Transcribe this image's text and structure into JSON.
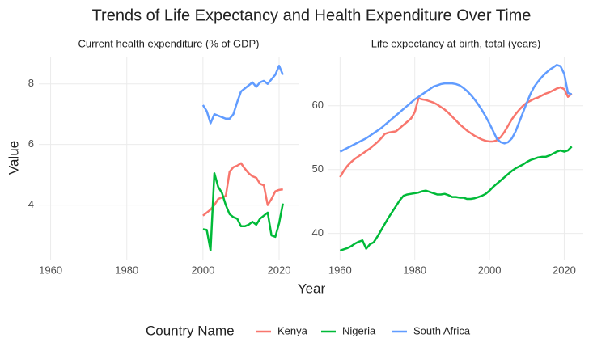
{
  "title": "Trends of Life Expectancy and Health Expenditure Over Time",
  "x_label": "Year",
  "y_label": "Value",
  "legend_title": "Country Name",
  "chart_data": [
    {
      "type": "line",
      "title": "Current health expenditure (% of GDP)",
      "x": [
        2000,
        2001,
        2002,
        2003,
        2004,
        2005,
        2006,
        2007,
        2008,
        2009,
        2010,
        2011,
        2012,
        2013,
        2014,
        2015,
        2016,
        2017,
        2018,
        2019,
        2020,
        2021
      ],
      "series": [
        {
          "name": "Kenya",
          "color": "#F8766D",
          "values": [
            3.65,
            3.75,
            3.85,
            4.0,
            4.2,
            4.25,
            4.3,
            5.1,
            5.25,
            5.3,
            5.38,
            5.2,
            5.05,
            4.95,
            4.9,
            4.7,
            4.65,
            4.0,
            4.2,
            4.45,
            4.5,
            4.52
          ]
        },
        {
          "name": "Nigeria",
          "color": "#00BA38",
          "values": [
            3.2,
            3.18,
            2.5,
            5.05,
            4.6,
            4.4,
            4.0,
            3.7,
            3.6,
            3.55,
            3.3,
            3.3,
            3.35,
            3.45,
            3.35,
            3.55,
            3.65,
            3.75,
            3.0,
            2.95,
            3.4,
            4.05
          ]
        },
        {
          "name": "South Africa",
          "color": "#619CFF",
          "values": [
            7.3,
            7.1,
            6.7,
            7.0,
            6.95,
            6.9,
            6.85,
            6.85,
            7.0,
            7.4,
            7.75,
            7.85,
            7.95,
            8.05,
            7.9,
            8.05,
            8.1,
            8.0,
            8.15,
            8.3,
            8.6,
            8.3
          ]
        }
      ],
      "xlim": [
        1956.9,
        2025.1
      ],
      "xticks": [
        1960,
        1980,
        2000,
        2020
      ],
      "ylim": [
        2.2,
        8.9
      ],
      "yticks": [
        4,
        6,
        8
      ],
      "grid": true
    },
    {
      "type": "line",
      "title": "Life expectancy at birth, total (years)",
      "x": [
        1960,
        1961,
        1962,
        1963,
        1964,
        1965,
        1966,
        1967,
        1968,
        1969,
        1970,
        1971,
        1972,
        1973,
        1974,
        1975,
        1976,
        1977,
        1978,
        1979,
        1980,
        1981,
        1982,
        1983,
        1984,
        1985,
        1986,
        1987,
        1988,
        1989,
        1990,
        1991,
        1992,
        1993,
        1994,
        1995,
        1996,
        1997,
        1998,
        1999,
        2000,
        2001,
        2002,
        2003,
        2004,
        2005,
        2006,
        2007,
        2008,
        2009,
        2010,
        2011,
        2012,
        2013,
        2014,
        2015,
        2016,
        2017,
        2018,
        2019,
        2020,
        2021,
        2022
      ],
      "series": [
        {
          "name": "Kenya",
          "color": "#F8766D",
          "values": [
            48.8,
            49.8,
            50.6,
            51.2,
            51.7,
            52.1,
            52.5,
            52.9,
            53.3,
            53.8,
            54.3,
            54.9,
            55.6,
            55.8,
            55.9,
            56.0,
            56.5,
            57.0,
            57.5,
            58.0,
            59.0,
            61.2,
            61.0,
            60.9,
            60.7,
            60.5,
            60.2,
            59.8,
            59.4,
            58.9,
            58.3,
            57.7,
            57.1,
            56.6,
            56.1,
            55.7,
            55.3,
            55.0,
            54.7,
            54.5,
            54.4,
            54.4,
            54.6,
            55.1,
            55.9,
            56.9,
            57.9,
            58.7,
            59.4,
            60.0,
            60.5,
            60.8,
            61.1,
            61.3,
            61.6,
            61.9,
            62.1,
            62.4,
            62.7,
            62.9,
            62.6,
            61.4,
            61.9
          ]
        },
        {
          "name": "Nigeria",
          "color": "#00BA38",
          "values": [
            37.3,
            37.5,
            37.7,
            38.0,
            38.4,
            38.7,
            38.9,
            37.6,
            38.3,
            38.6,
            39.5,
            40.5,
            41.5,
            42.5,
            43.4,
            44.3,
            45.2,
            45.9,
            46.1,
            46.2,
            46.3,
            46.4,
            46.6,
            46.7,
            46.5,
            46.3,
            46.1,
            46.1,
            46.2,
            46.0,
            45.7,
            45.7,
            45.6,
            45.6,
            45.4,
            45.4,
            45.5,
            45.7,
            45.9,
            46.2,
            46.7,
            47.3,
            47.8,
            48.3,
            48.8,
            49.3,
            49.8,
            50.2,
            50.5,
            50.8,
            51.2,
            51.5,
            51.7,
            51.9,
            52.0,
            52.0,
            52.2,
            52.5,
            52.8,
            53.0,
            52.8,
            53.0,
            53.6
          ]
        },
        {
          "name": "South Africa",
          "color": "#619CFF",
          "values": [
            52.8,
            53.1,
            53.4,
            53.7,
            54.0,
            54.3,
            54.6,
            54.9,
            55.3,
            55.7,
            56.1,
            56.5,
            57.0,
            57.5,
            58.0,
            58.5,
            59.0,
            59.5,
            60.0,
            60.5,
            61.0,
            61.4,
            61.8,
            62.2,
            62.6,
            63.0,
            63.2,
            63.4,
            63.5,
            63.5,
            63.5,
            63.4,
            63.2,
            62.8,
            62.3,
            61.7,
            61.0,
            60.2,
            59.3,
            58.3,
            57.2,
            56.0,
            54.8,
            54.3,
            54.1,
            54.3,
            54.9,
            56.0,
            57.5,
            59.0,
            60.5,
            61.9,
            63.0,
            63.8,
            64.5,
            65.1,
            65.6,
            66.0,
            66.4,
            66.2,
            65.0,
            62.0,
            61.8
          ]
        }
      ],
      "xlim": [
        1956.9,
        2025.1
      ],
      "xticks": [
        1960,
        1980,
        2000,
        2020
      ],
      "ylim": [
        35.9,
        67.7
      ],
      "yticks": [
        40,
        50,
        60
      ],
      "grid": true
    }
  ]
}
